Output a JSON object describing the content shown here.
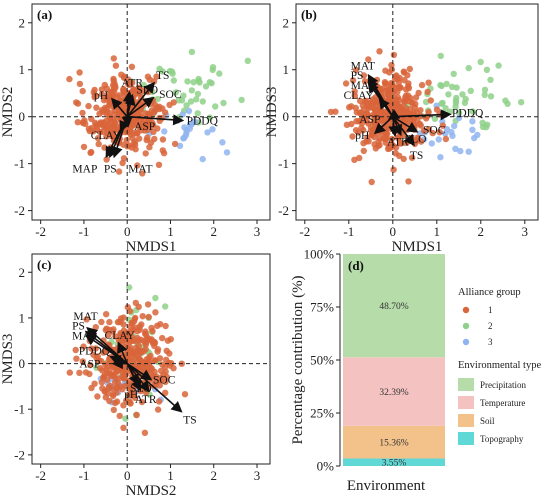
{
  "figure": {
    "panels": [
      {
        "id": "a",
        "label": "(a)",
        "xlabel": "NMDS1",
        "ylabel": "NMDS2",
        "xlim": [
          -2.2,
          3.3
        ],
        "ylim": [
          -2.2,
          2.4
        ],
        "xticks": [
          -2,
          -1,
          0,
          1,
          2,
          3
        ],
        "yticks": [
          -2,
          -1,
          0,
          1,
          2
        ],
        "vectors": [
          {
            "name": "TS",
            "x": 0.62,
            "y": 0.72
          },
          {
            "name": "ATR",
            "x": 0.05,
            "y": 0.52
          },
          {
            "name": "SLO",
            "x": 0.12,
            "y": 0.45
          },
          {
            "name": "pH",
            "x": -0.35,
            "y": 0.38
          },
          {
            "name": "SOC",
            "x": 0.6,
            "y": 0.4
          },
          {
            "name": "PDDQ",
            "x": 1.28,
            "y": -0.08
          },
          {
            "name": "CLAY",
            "x": -0.15,
            "y": -0.3
          },
          {
            "name": "ASP",
            "x": 0.02,
            "y": -0.2
          },
          {
            "name": "MAP",
            "x": -0.48,
            "y": -0.85
          },
          {
            "name": "PS",
            "x": -0.4,
            "y": -0.85
          },
          {
            "name": "MAT",
            "x": -0.3,
            "y": -0.85
          }
        ]
      },
      {
        "id": "b",
        "label": "(b)",
        "xlabel": "NMDS1",
        "ylabel": "NMDS3",
        "xlim": [
          -2.2,
          3.3
        ],
        "ylim": [
          -2.2,
          2.4
        ],
        "xticks": [
          -2,
          -1,
          0,
          1,
          2,
          3
        ],
        "yticks": [
          -2,
          -1,
          0,
          1,
          2
        ],
        "vectors": [
          {
            "name": "MAT",
            "x": -0.55,
            "y": 0.88
          },
          {
            "name": "PS",
            "x": -0.55,
            "y": 0.8
          },
          {
            "name": "MAP",
            "x": -0.55,
            "y": 0.72
          },
          {
            "name": "CLAY",
            "x": -0.3,
            "y": 0.38
          },
          {
            "name": "PDDQ",
            "x": 1.3,
            "y": 0.05
          },
          {
            "name": "ASP",
            "x": -0.08,
            "y": -0.05
          },
          {
            "name": "pH",
            "x": -0.4,
            "y": -0.35
          },
          {
            "name": "ATR",
            "x": 0.05,
            "y": -0.4
          },
          {
            "name": "SLO",
            "x": 0.18,
            "y": -0.38
          },
          {
            "name": "SOC",
            "x": 0.55,
            "y": -0.32
          },
          {
            "name": "TS",
            "x": 0.48,
            "y": -0.6
          }
        ]
      },
      {
        "id": "c",
        "label": "(c)",
        "xlabel": "NMDS2",
        "ylabel": "NMDS3",
        "xlim": [
          -2.2,
          3.3
        ],
        "ylim": [
          -2.2,
          2.4
        ],
        "xticks": [
          -2,
          -1,
          0,
          1,
          2,
          3
        ],
        "yticks": [
          -2,
          -1,
          0,
          1,
          2
        ],
        "vectors": [
          {
            "name": "MAT",
            "x": -0.92,
            "y": 0.78
          },
          {
            "name": "PS",
            "x": -0.95,
            "y": 0.7
          },
          {
            "name": "MAP",
            "x": -0.95,
            "y": 0.62
          },
          {
            "name": "CLAY",
            "x": -0.2,
            "y": 0.45
          },
          {
            "name": "PDDQ",
            "x": -0.38,
            "y": 0.15
          },
          {
            "name": "ASP",
            "x": -0.32,
            "y": 0.0
          },
          {
            "name": "SLO",
            "x": 0.25,
            "y": -0.45
          },
          {
            "name": "SOC",
            "x": 0.55,
            "y": -0.35
          },
          {
            "name": "pH",
            "x": 0.3,
            "y": -0.58
          },
          {
            "name": "ATR",
            "x": 0.5,
            "y": -0.6
          },
          {
            "name": "TS",
            "x": 1.25,
            "y": -1.05
          }
        ]
      }
    ],
    "groups_legend": {
      "title": "Alliance group",
      "items": [
        {
          "name": "1",
          "color": "#d9653b"
        },
        {
          "name": "2",
          "color": "#8fd18a"
        },
        {
          "name": "3",
          "color": "#8fb4f0"
        }
      ]
    },
    "env_legend": {
      "title": "Environmental type",
      "items": [
        {
          "name": "Precipitation",
          "color": "#b6dcaa"
        },
        {
          "name": "Temperature",
          "color": "#f4c3c1"
        },
        {
          "name": "Soil",
          "color": "#f3c28b"
        },
        {
          "name": "Topography",
          "color": "#5fd8d6"
        }
      ]
    }
  },
  "chart_data": {
    "type": "bar",
    "panel_label": "(d)",
    "xlabel": "Environment",
    "ylabel": "Percentage contribution (%)",
    "ytick_labels": [
      "0%",
      "25%",
      "50%",
      "75%",
      "100%"
    ],
    "ylim": [
      0,
      100
    ],
    "stacked": true,
    "segments": [
      {
        "name": "Topography",
        "value": 3.55,
        "label": "3.55%",
        "color": "#5fd8d6"
      },
      {
        "name": "Soil",
        "value": 15.36,
        "label": "15.36%",
        "color": "#f3c28b"
      },
      {
        "name": "Temperature",
        "value": 32.39,
        "label": "32.39%",
        "color": "#f4c3c1"
      },
      {
        "name": "Precipitation",
        "value": 48.7,
        "label": "48.70%",
        "color": "#b6dcaa"
      }
    ]
  }
}
